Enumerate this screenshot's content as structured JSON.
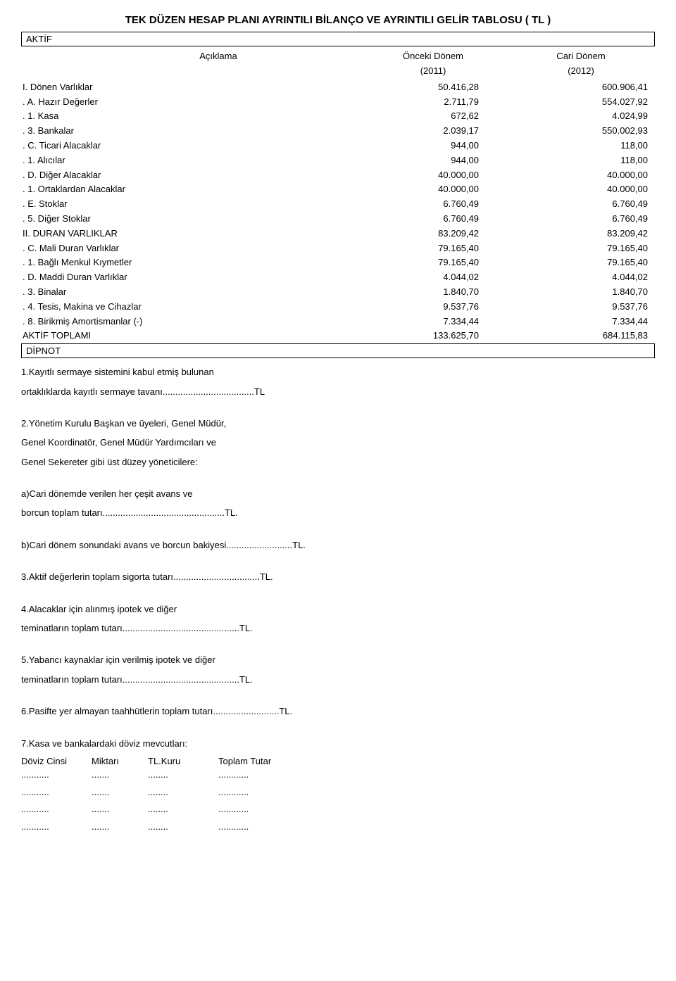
{
  "title": "TEK DÜZEN HESAP PLANI AYRINTILI BİLANÇO VE AYRINTILI GELİR TABLOSU  ( TL )",
  "section_header": "AKTİF",
  "columns": {
    "desc": "Açıklama",
    "prev": "Önceki Dönem",
    "curr": "Cari Dönem",
    "prev_year": "(2011)",
    "curr_year": "(2012)"
  },
  "rows": [
    {
      "label": "I. Dönen Varlıklar",
      "prev": "50.416,28",
      "curr": "600.906,41"
    },
    {
      "label": ". A. Hazır Değerler",
      "prev": "2.711,79",
      "curr": "554.027,92"
    },
    {
      "label": ". 1. Kasa",
      "prev": "672,62",
      "curr": "4.024,99"
    },
    {
      "label": ". 3. Bankalar",
      "prev": "2.039,17",
      "curr": "550.002,93"
    },
    {
      "label": ". C. Ticari Alacaklar",
      "prev": "944,00",
      "curr": "118,00"
    },
    {
      "label": ". 1. Alıcılar",
      "prev": "944,00",
      "curr": "118,00"
    },
    {
      "label": ". D. Diğer Alacaklar",
      "prev": "40.000,00",
      "curr": "40.000,00"
    },
    {
      "label": ". 1. Ortaklardan Alacaklar",
      "prev": "40.000,00",
      "curr": "40.000,00"
    },
    {
      "label": ". E. Stoklar",
      "prev": "6.760,49",
      "curr": "6.760,49"
    },
    {
      "label": ". 5. Diğer Stoklar",
      "prev": "6.760,49",
      "curr": "6.760,49"
    },
    {
      "label": "II. DURAN VARLIKLAR",
      "prev": "83.209,42",
      "curr": "83.209,42"
    },
    {
      "label": ". C. Mali Duran Varlıklar",
      "prev": "79.165,40",
      "curr": "79.165,40"
    },
    {
      "label": ". 1. Bağlı Menkul Kıymetler",
      "prev": "79.165,40",
      "curr": "79.165,40"
    },
    {
      "label": ". D. Maddi Duran Varlıklar",
      "prev": "4.044,02",
      "curr": "4.044,02"
    },
    {
      "label": ". 3. Binalar",
      "prev": "1.840,70",
      "curr": "1.840,70"
    },
    {
      "label": ". 4. Tesis, Makina ve Cihazlar",
      "prev": "9.537,76",
      "curr": "9.537,76"
    },
    {
      "label": ". 8. Birikmiş Amortismanlar (-)",
      "prev": "7.334,44",
      "curr": "7.334,44"
    },
    {
      "label": "AKTİF TOPLAMI",
      "prev": "133.625,70",
      "curr": "684.115,83"
    }
  ],
  "dipnot_header": "DİPNOT",
  "notes": [
    "1.Kayıtlı sermaye sistemini kabul etmiş bulunan",
    "ortaklıklarda kayıtlı sermaye tavanı....................................TL",
    "",
    "2.Yönetim Kurulu Başkan ve üyeleri, Genel Müdür,",
    "Genel Koordinatör, Genel Müdür Yardımcıları ve",
    "Genel Sekereter gibi üst düzey yöneticilere:",
    "",
    "a)Cari dönemde verilen her çeşit avans ve",
    "borcun toplam tutarı................................................TL.",
    "",
    "b)Cari dönem sonundaki avans ve borcun bakiyesi..........................TL.",
    "",
    "3.Aktif değerlerin toplam sigorta tutarı..................................TL.",
    "",
    "4.Alacaklar için alınmış ipotek ve diğer",
    "teminatların toplam tutarı..............................................TL.",
    "",
    "5.Yabancı kaynaklar için verilmiş ipotek ve diğer",
    "teminatların toplam tutarı..............................................TL.",
    "",
    "6.Pasifte yer almayan taahhütlerin toplam tutarı..........................TL.",
    "",
    "7.Kasa ve bankalardaki döviz mevcutları:"
  ],
  "doviz": {
    "headers": [
      "Döviz Cinsi",
      "Miktarı",
      "TL.Kuru",
      "Toplam Tutar"
    ],
    "rows": [
      [
        "...........",
        ".......",
        "........",
        "............"
      ],
      [
        "...........",
        ".......",
        "........",
        "............"
      ],
      [
        "...........",
        ".......",
        "........",
        "............"
      ],
      [
        "...........",
        ".......",
        "........",
        "............"
      ]
    ]
  }
}
